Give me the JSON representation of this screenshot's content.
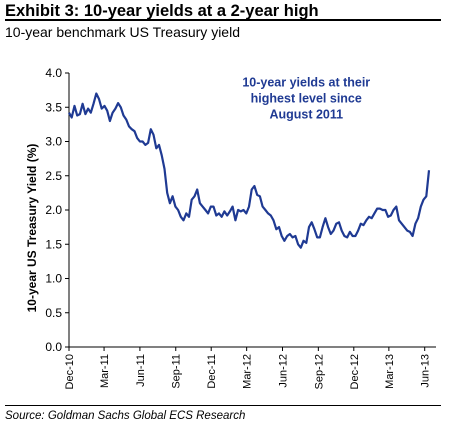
{
  "header": {
    "title": "Exhibit 3: 10-year yields at a 2-year high",
    "subtitle": "10-year benchmark US Treasury yield"
  },
  "footer": {
    "source": "Source: Goldman Sachs Global ECS Research"
  },
  "colors": {
    "series": "#1f3a93",
    "annotation": "#1f3a93",
    "axis": "#000000"
  },
  "chart_data": {
    "type": "line",
    "title": "Exhibit 3: 10-year yields at a 2-year high",
    "subtitle": "10-year benchmark US Treasury yield",
    "xlabel": "",
    "ylabel": "10-year US Treasury Yield (%)",
    "ylim": [
      0,
      4.0
    ],
    "yticks": [
      "0.0",
      "0.5",
      "1.0",
      "1.5",
      "2.0",
      "2.5",
      "3.0",
      "3.5",
      "4.0"
    ],
    "xlim": [
      "2010-12-01",
      "2013-06-30"
    ],
    "xticks": [
      "Dec-10",
      "Mar-11",
      "Jun-11",
      "Sep-11",
      "Dec-11",
      "Mar-12",
      "Jun-12",
      "Sep-12",
      "Dec-12",
      "Mar-13",
      "Jun-13"
    ],
    "grid": false,
    "legend": "none",
    "annotations": [
      {
        "lines": [
          "10-year yields at their",
          "highest level since",
          "August 2011"
        ],
        "x": "2012-08-01",
        "y": 3.8
      }
    ],
    "series": [
      {
        "x": [
          "2010-12-01",
          "2010-12-08",
          "2010-12-15",
          "2010-12-22",
          "2010-12-29",
          "2011-01-05",
          "2011-01-12",
          "2011-01-19",
          "2011-01-26",
          "2011-02-02",
          "2011-02-09",
          "2011-02-16",
          "2011-02-23",
          "2011-03-02",
          "2011-03-09",
          "2011-03-16",
          "2011-03-23",
          "2011-03-30",
          "2011-04-06",
          "2011-04-13",
          "2011-04-20",
          "2011-04-27",
          "2011-05-04",
          "2011-05-11",
          "2011-05-18",
          "2011-05-25",
          "2011-06-01",
          "2011-06-08",
          "2011-06-15",
          "2011-06-22",
          "2011-06-29",
          "2011-07-06",
          "2011-07-13",
          "2011-07-20",
          "2011-07-27",
          "2011-08-03",
          "2011-08-10",
          "2011-08-17",
          "2011-08-24",
          "2011-08-31",
          "2011-09-07",
          "2011-09-14",
          "2011-09-21",
          "2011-09-28",
          "2011-10-05",
          "2011-10-12",
          "2011-10-19",
          "2011-10-26",
          "2011-11-02",
          "2011-11-09",
          "2011-11-16",
          "2011-11-23",
          "2011-11-30",
          "2011-12-07",
          "2011-12-14",
          "2011-12-21",
          "2011-12-28",
          "2012-01-04",
          "2012-01-11",
          "2012-01-18",
          "2012-01-25",
          "2012-02-01",
          "2012-02-08",
          "2012-02-15",
          "2012-02-22",
          "2012-02-29",
          "2012-03-07",
          "2012-03-14",
          "2012-03-21",
          "2012-03-28",
          "2012-04-04",
          "2012-04-11",
          "2012-04-18",
          "2012-04-25",
          "2012-05-02",
          "2012-05-09",
          "2012-05-16",
          "2012-05-23",
          "2012-05-30",
          "2012-06-06",
          "2012-06-13",
          "2012-06-20",
          "2012-06-27",
          "2012-07-04",
          "2012-07-11",
          "2012-07-18",
          "2012-07-25",
          "2012-08-01",
          "2012-08-08",
          "2012-08-15",
          "2012-08-22",
          "2012-08-29",
          "2012-09-05",
          "2012-09-12",
          "2012-09-19",
          "2012-09-26",
          "2012-10-03",
          "2012-10-10",
          "2012-10-17",
          "2012-10-24",
          "2012-10-31",
          "2012-11-07",
          "2012-11-14",
          "2012-11-21",
          "2012-11-28",
          "2012-12-05",
          "2012-12-12",
          "2012-12-19",
          "2012-12-26",
          "2013-01-02",
          "2013-01-09",
          "2013-01-16",
          "2013-01-23",
          "2013-01-30",
          "2013-02-06",
          "2013-02-13",
          "2013-02-20",
          "2013-02-27",
          "2013-03-06",
          "2013-03-13",
          "2013-03-20",
          "2013-03-27",
          "2013-04-03",
          "2013-04-10",
          "2013-04-17",
          "2013-04-24",
          "2013-05-01",
          "2013-05-08",
          "2013-05-15",
          "2013-05-22",
          "2013-05-29",
          "2013-06-05",
          "2013-06-12"
        ],
        "values": [
          3.42,
          3.35,
          3.52,
          3.38,
          3.4,
          3.55,
          3.4,
          3.48,
          3.42,
          3.55,
          3.7,
          3.62,
          3.48,
          3.52,
          3.45,
          3.3,
          3.42,
          3.48,
          3.56,
          3.5,
          3.38,
          3.32,
          3.22,
          3.18,
          3.15,
          3.05,
          3.0,
          3.0,
          2.95,
          2.98,
          3.18,
          3.1,
          2.9,
          2.95,
          2.8,
          2.6,
          2.25,
          2.1,
          2.2,
          2.05,
          2.0,
          1.9,
          1.85,
          1.95,
          1.9,
          2.15,
          2.2,
          2.3,
          2.1,
          2.05,
          2.0,
          1.95,
          2.05,
          2.05,
          1.92,
          1.95,
          1.9,
          1.98,
          1.92,
          1.98,
          2.05,
          1.85,
          2.0,
          1.98,
          2.0,
          1.95,
          2.05,
          2.3,
          2.35,
          2.22,
          2.2,
          2.05,
          2.0,
          1.95,
          1.92,
          1.85,
          1.72,
          1.75,
          1.62,
          1.55,
          1.62,
          1.65,
          1.6,
          1.62,
          1.5,
          1.45,
          1.55,
          1.52,
          1.75,
          1.82,
          1.72,
          1.6,
          1.6,
          1.75,
          1.88,
          1.75,
          1.65,
          1.7,
          1.8,
          1.82,
          1.7,
          1.62,
          1.6,
          1.68,
          1.62,
          1.62,
          1.7,
          1.8,
          1.78,
          1.85,
          1.9,
          1.88,
          1.95,
          2.02,
          2.02,
          2.0,
          2.0,
          1.9,
          1.92,
          2.0,
          2.05,
          1.85,
          1.8,
          1.75,
          1.7,
          1.68,
          1.62,
          1.8,
          1.88,
          2.05,
          2.15,
          2.2,
          2.58
        ]
      }
    ]
  }
}
